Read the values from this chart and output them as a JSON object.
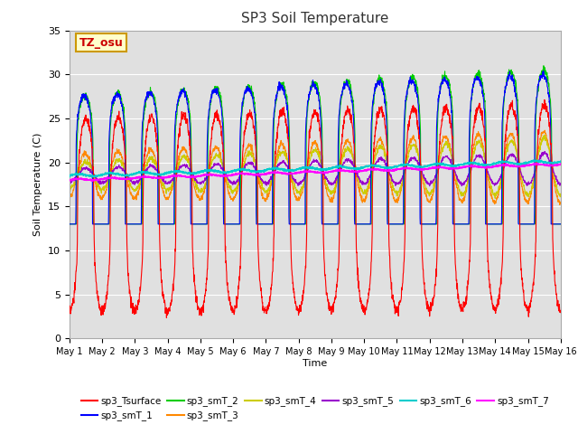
{
  "title": "SP3 Soil Temperature",
  "xlabel": "Time",
  "ylabel": "Soil Temperature (C)",
  "ylim": [
    0,
    35
  ],
  "xlim": [
    0,
    15
  ],
  "xtick_labels": [
    "May 1",
    "May 2",
    "May 3",
    "May 4",
    "May 5",
    "May 6",
    "May 7",
    "May 8",
    "May 9",
    "May 10",
    "May 11",
    "May 12",
    "May 13",
    "May 14",
    "May 15",
    "May 16"
  ],
  "ytick_labels": [
    "0",
    "5",
    "10",
    "15",
    "20",
    "25",
    "30",
    "35"
  ],
  "annotation_text": "TZ_osu",
  "annotation_color": "#cc0000",
  "annotation_bg": "#ffffcc",
  "annotation_border": "#cc9900",
  "series_colors": {
    "sp3_Tsurface": "#ff0000",
    "sp3_smT_1": "#0000ff",
    "sp3_smT_2": "#00cc00",
    "sp3_smT_3": "#ff8800",
    "sp3_smT_4": "#cccc00",
    "sp3_smT_5": "#9900cc",
    "sp3_smT_6": "#00cccc",
    "sp3_smT_7": "#ff00ff"
  },
  "bg_color": "#e0e0e0",
  "grid_color": "#ffffff",
  "fig_bg": "#ffffff"
}
